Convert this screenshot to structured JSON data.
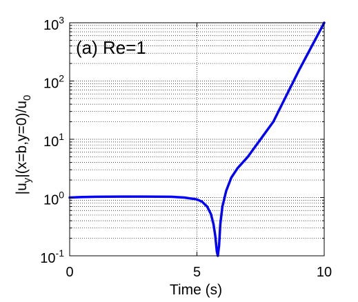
{
  "chart_data": {
    "type": "line",
    "annotation": "(a) Re=1",
    "xlabel": "Time (s)",
    "ylabel": {
      "pre": "|u",
      "sub": "y",
      "mid": "|(x=b,y=0)/u",
      "sub2": "0"
    },
    "xlim": [
      0,
      10
    ],
    "ylim": [
      0.1,
      1000
    ],
    "yscale": "log",
    "grid": true,
    "xticks": [
      "0",
      "5",
      "10"
    ],
    "yticks": [
      {
        "base": "10",
        "exp": "-1"
      },
      {
        "base": "10",
        "exp": "0"
      },
      {
        "base": "10",
        "exp": "1"
      },
      {
        "base": "10",
        "exp": "2"
      },
      {
        "base": "10",
        "exp": "3"
      }
    ],
    "series": [
      {
        "color": "#0000ff",
        "x": [
          0,
          0.5,
          1,
          2,
          3,
          4,
          4.5,
          5,
          5.2,
          5.4,
          5.55,
          5.65,
          5.72,
          5.78,
          5.82,
          5.87,
          5.92,
          6.0,
          6.15,
          6.35,
          6.6,
          7.0,
          8.0,
          9.0,
          10.0
        ],
        "y": [
          1.0,
          1.02,
          1.03,
          1.04,
          1.04,
          1.03,
          1.0,
          0.93,
          0.85,
          0.7,
          0.52,
          0.35,
          0.22,
          0.12,
          0.1,
          0.15,
          0.35,
          0.7,
          1.3,
          2.2,
          3.2,
          5.0,
          20,
          150,
          1000
        ]
      }
    ]
  }
}
